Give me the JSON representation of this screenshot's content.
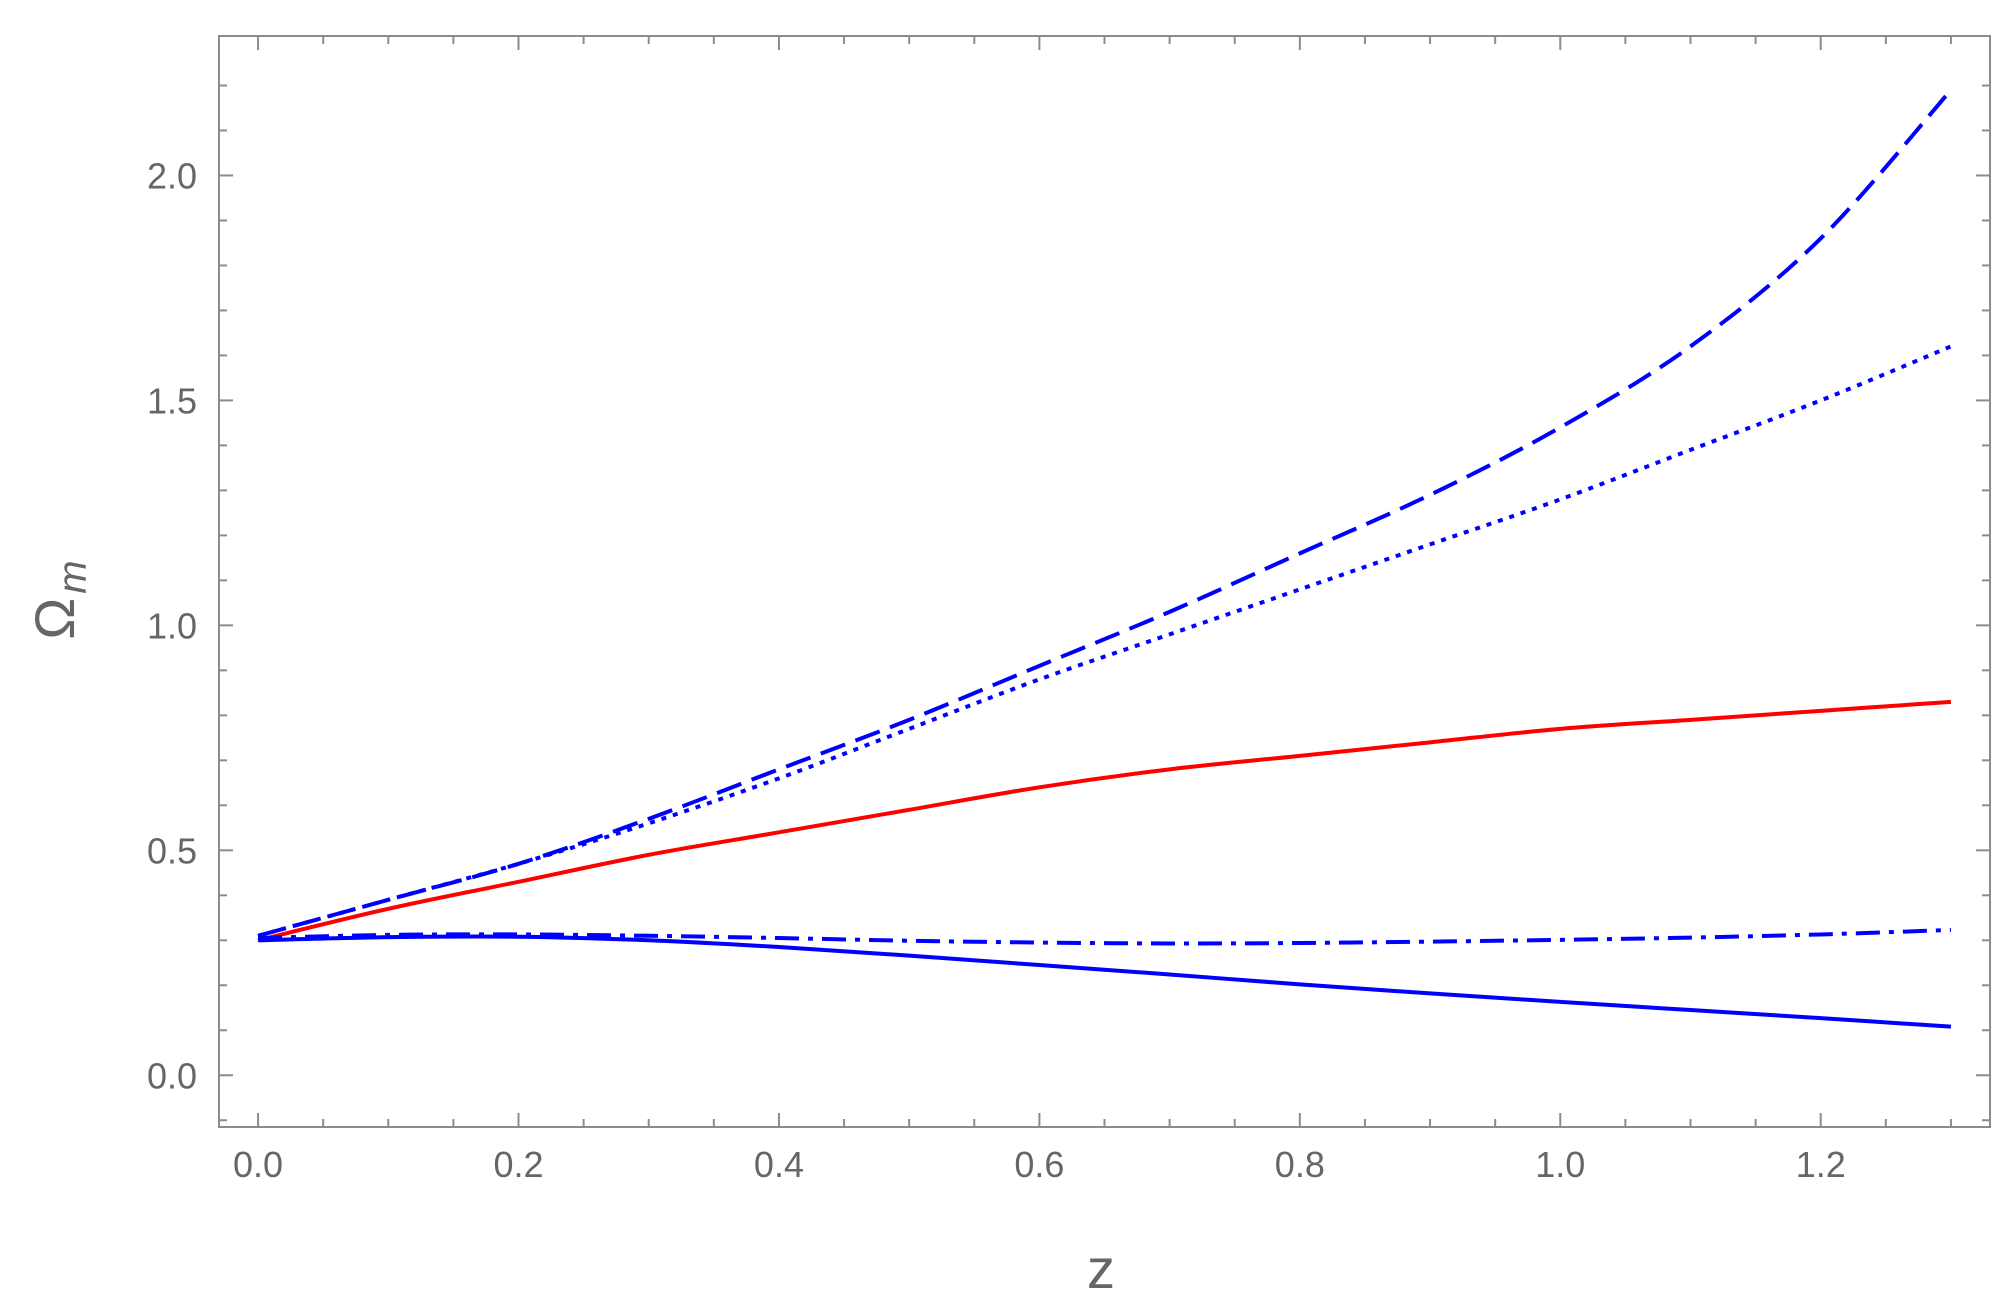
{
  "chart_data": {
    "type": "line",
    "xlabel": "z",
    "ylabel": "Ω",
    "ylabel_subscript": "m",
    "xlim": [
      -0.03,
      1.33
    ],
    "ylim": [
      -0.115,
      2.31
    ],
    "x_ticks": [
      0.0,
      0.2,
      0.4,
      0.6,
      0.8,
      1.0,
      1.2
    ],
    "x_tick_labels": [
      "0.0",
      "0.2",
      "0.4",
      "0.6",
      "0.8",
      "1.0",
      "1.2"
    ],
    "y_ticks": [
      0.0,
      0.5,
      1.0,
      1.5,
      2.0
    ],
    "y_tick_labels": [
      "0.0",
      "0.5",
      "1.0",
      "1.5",
      "2.0"
    ],
    "grid": false,
    "legend": "none",
    "series": [
      {
        "color": "#0000ff",
        "style": "dashed",
        "x": [
          0.0,
          0.1,
          0.2,
          0.3,
          0.4,
          0.5,
          0.6,
          0.7,
          0.8,
          0.9,
          1.0,
          1.1,
          1.2,
          1.3
        ],
        "y": [
          0.31,
          0.39,
          0.47,
          0.57,
          0.68,
          0.79,
          0.91,
          1.03,
          1.16,
          1.29,
          1.44,
          1.62,
          1.86,
          2.19
        ]
      },
      {
        "color": "#0000ff",
        "style": "dotted",
        "x": [
          0.0,
          0.1,
          0.2,
          0.3,
          0.4,
          0.5,
          0.6,
          0.7,
          0.8,
          0.9,
          1.0,
          1.1,
          1.2,
          1.3
        ],
        "y": [
          0.31,
          0.39,
          0.47,
          0.56,
          0.66,
          0.77,
          0.88,
          0.98,
          1.08,
          1.18,
          1.28,
          1.39,
          1.5,
          1.62
        ]
      },
      {
        "color": "#ff0000",
        "style": "solid",
        "x": [
          0.0,
          0.1,
          0.2,
          0.3,
          0.4,
          0.5,
          0.6,
          0.7,
          0.8,
          0.9,
          1.0,
          1.1,
          1.2,
          1.3
        ],
        "y": [
          0.3,
          0.37,
          0.43,
          0.49,
          0.54,
          0.59,
          0.64,
          0.68,
          0.71,
          0.74,
          0.77,
          0.79,
          0.81,
          0.83
        ]
      },
      {
        "color": "#0000ff",
        "style": "dashdot",
        "x": [
          0.0,
          0.1,
          0.2,
          0.3,
          0.4,
          0.5,
          0.6,
          0.7,
          0.8,
          0.9,
          1.0,
          1.1,
          1.2,
          1.3
        ],
        "y": [
          0.305,
          0.312,
          0.313,
          0.31,
          0.305,
          0.299,
          0.295,
          0.293,
          0.294,
          0.297,
          0.301,
          0.306,
          0.313,
          0.323
        ]
      },
      {
        "color": "#0000ff",
        "style": "solid",
        "x": [
          0.0,
          0.1,
          0.2,
          0.3,
          0.4,
          0.5,
          0.6,
          0.7,
          0.8,
          0.9,
          1.0,
          1.1,
          1.2,
          1.3
        ],
        "y": [
          0.3,
          0.307,
          0.308,
          0.3,
          0.285,
          0.266,
          0.245,
          0.224,
          0.202,
          0.182,
          0.163,
          0.145,
          0.127,
          0.108
        ]
      }
    ]
  }
}
